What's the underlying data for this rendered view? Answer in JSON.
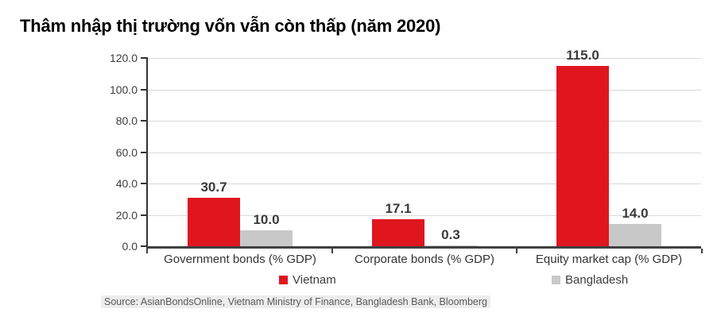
{
  "chart_data": {
    "type": "bar",
    "title": "Thâm nhập thị trường vốn vẫn còn thấp (năm 2020)",
    "categories": [
      "Government bonds (% GDP)",
      "Corporate bonds (% GDP)",
      "Equity market cap (% GDP)"
    ],
    "series": [
      {
        "name": "Vietnam",
        "color": "#e0161f",
        "values": [
          30.7,
          17.1,
          115.0
        ],
        "value_labels": [
          "30.7",
          "17.1",
          "115.0"
        ]
      },
      {
        "name": "Bangladesh",
        "color": "#c8c8c8",
        "values": [
          10.0,
          0.3,
          14.0
        ],
        "value_labels": [
          "10.0",
          "0.3",
          "14.0"
        ]
      }
    ],
    "xlabel": "",
    "ylabel": "",
    "ylim": [
      0,
      120
    ],
    "yticks": [
      0,
      20,
      40,
      60,
      80,
      100,
      120
    ],
    "ytick_labels": [
      "0.0",
      "20.0",
      "40.0",
      "60.0",
      "80.0",
      "100.0",
      "120.0"
    ],
    "grid": "horizontal",
    "legend_position": "bottom",
    "source": "Source: AsianBondsOnline, Vietnam Ministry of Finance, Bangladesh Bank, Bloomberg"
  },
  "colors": {
    "vietnam": "#e0161f",
    "bangladesh": "#c8c8c8",
    "gridline": "#d9d9d9",
    "axis": "#404040",
    "text": "#3a3a3a"
  }
}
